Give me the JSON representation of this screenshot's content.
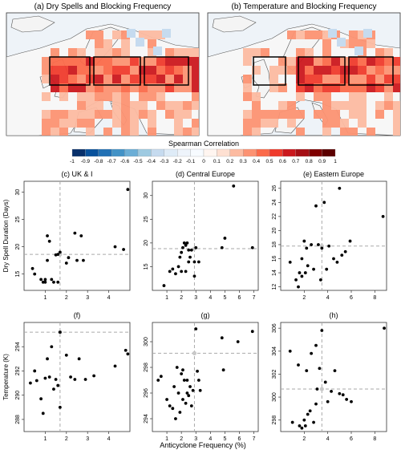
{
  "maps": [
    {
      "title": "(a) Dry Spells and Blocking Frequency"
    },
    {
      "title": "(b) Temperature and Blocking Frequency"
    }
  ],
  "colorbar": {
    "title": "Spearman Correlation",
    "ticks": [
      "-1",
      "-0.9",
      "-0.8",
      "-0.7",
      "-0.6",
      "-0.5",
      "-0.4",
      "-0.3",
      "-0.2",
      "-0.1",
      "0",
      "0.1",
      "0.2",
      "0.3",
      "0.4",
      "0.5",
      "0.6",
      "0.7",
      "0.8",
      "0.9",
      "1"
    ],
    "colors": [
      "#08306b",
      "#08519c",
      "#2171b5",
      "#4292c6",
      "#6baed6",
      "#9ecae1",
      "#c6dbef",
      "#deebf7",
      "#eef4fb",
      "#f7fbff",
      "#fff5f0",
      "#fee0d2",
      "#fcbba1",
      "#fc9272",
      "#fb6a4a",
      "#ef3b2c",
      "#cb181d",
      "#a50f15",
      "#7f0000",
      "#5c0000"
    ]
  },
  "ylabels": [
    "Dry Spell Duration (Days)",
    "Temperature (K)"
  ],
  "xlabel": "Anticyclone Frequency (%)",
  "chart_data": [
    {
      "type": "scatter",
      "title": "(c) UK & I",
      "xlim": [
        0,
        5
      ],
      "ylim": [
        12,
        32
      ],
      "xticks": [
        1,
        2,
        3,
        4
      ],
      "yticks": [
        15,
        20,
        25,
        30
      ],
      "ref_x": 1.7,
      "ref_y": 18.6,
      "x": [
        0.4,
        0.5,
        0.8,
        0.9,
        1.0,
        1.0,
        1.1,
        1.1,
        1.2,
        1.3,
        1.4,
        1.5,
        1.6,
        1.7,
        2.0,
        2.1,
        2.4,
        2.5,
        2.7,
        2.8,
        4.3,
        4.7,
        4.9,
        1.6
      ],
      "y": [
        16,
        15,
        14,
        13.5,
        13.5,
        14,
        17.5,
        22,
        21,
        14,
        13.5,
        18.5,
        13.5,
        19,
        17,
        18,
        22.5,
        17.5,
        22,
        17.5,
        20,
        19.5,
        30.5,
        18.6
      ]
    },
    {
      "type": "scatter",
      "title": "(d) Central Europe",
      "xlim": [
        0,
        7.3
      ],
      "ylim": [
        10,
        33
      ],
      "xticks": [
        1,
        2,
        3,
        4,
        5,
        6,
        7
      ],
      "yticks": [
        15,
        20,
        25,
        30
      ],
      "ref_x": 2.9,
      "ref_y": 18.8,
      "x": [
        0.8,
        1.2,
        1.4,
        1.6,
        1.8,
        1.9,
        2.0,
        2.0,
        2.1,
        2.2,
        2.3,
        2.3,
        2.4,
        2.5,
        2.5,
        2.6,
        2.7,
        2.9,
        2.9,
        3.0,
        3.2,
        4.8,
        5.0,
        5.6,
        6.9
      ],
      "y": [
        11,
        14,
        14.5,
        13.5,
        15,
        17,
        14,
        18,
        19,
        20,
        19.5,
        14,
        20,
        18.5,
        16,
        17,
        18.5,
        16,
        13,
        19,
        16,
        19,
        21,
        32,
        19
      ]
    },
    {
      "type": "scatter",
      "title": "(e) Eastern Europe",
      "xlim": [
        0,
        9
      ],
      "ylim": [
        11.5,
        27
      ],
      "xticks": [
        2,
        4,
        6,
        8
      ],
      "yticks": [
        12,
        14,
        16,
        18,
        20,
        22,
        24,
        26
      ],
      "ref_x": 3.5,
      "ref_y": 17.8,
      "x": [
        0.8,
        1.3,
        1.5,
        1.6,
        1.8,
        1.8,
        2.0,
        2.1,
        2.2,
        2.3,
        2.6,
        2.8,
        3.0,
        3.2,
        3.4,
        3.5,
        3.7,
        3.9,
        4.1,
        4.5,
        4.8,
        5.0,
        5.2,
        5.5,
        5.9,
        8.7
      ],
      "y": [
        15.5,
        13,
        12,
        14,
        16,
        13.5,
        18.5,
        14,
        17.5,
        15,
        18,
        14.5,
        23.5,
        18,
        13,
        17.5,
        24,
        14.5,
        17.8,
        16,
        15.5,
        26,
        16.5,
        17,
        18.5,
        22
      ]
    },
    {
      "type": "scatter",
      "title": "(f)",
      "xlim": [
        0,
        5
      ],
      "ylim": [
        287,
        296
      ],
      "xticks": [
        1,
        2,
        3,
        4
      ],
      "yticks": [
        288,
        290,
        292,
        294
      ],
      "ref_x": 1.7,
      "ref_y": 295.2,
      "x": [
        0.3,
        0.5,
        0.6,
        0.8,
        0.9,
        1.0,
        1.1,
        1.2,
        1.3,
        1.4,
        1.5,
        1.6,
        1.7,
        2.0,
        2.2,
        2.4,
        2.6,
        2.9,
        3.3,
        4.3,
        4.8,
        4.9,
        1.7
      ],
      "y": [
        291,
        292,
        291.2,
        289.7,
        288.5,
        291.4,
        293,
        291.5,
        294,
        290.5,
        291.3,
        290.8,
        289,
        293.3,
        291.5,
        291.3,
        293,
        291.3,
        291.6,
        292.4,
        293.7,
        293.4,
        295.2
      ]
    },
    {
      "type": "scatter",
      "title": "(g)",
      "xlim": [
        0,
        7.3
      ],
      "ylim": [
        293,
        301.5
      ],
      "xticks": [
        1,
        2,
        3,
        4,
        5,
        6,
        7
      ],
      "yticks": [
        294,
        296,
        298,
        300
      ],
      "ref_x": 2.9,
      "ref_y": 299.1,
      "x": [
        0.4,
        0.6,
        1.0,
        1.2,
        1.4,
        1.5,
        1.6,
        1.7,
        1.8,
        1.9,
        2.0,
        2.1,
        2.1,
        2.2,
        2.3,
        2.4,
        2.4,
        2.5,
        2.6,
        2.7,
        2.8,
        3.0,
        3.1,
        3.2,
        3.3,
        4.8,
        4.9,
        5.9,
        6.9
      ],
      "y": [
        297,
        297.3,
        295.5,
        295,
        294.8,
        296.5,
        294,
        298,
        296,
        294.5,
        297.5,
        297.8,
        295.5,
        297,
        295.2,
        296,
        297,
        295.8,
        296.5,
        295,
        296.2,
        301,
        297.7,
        297,
        296.2,
        300.3,
        297.8,
        300,
        300.8
      ]
    },
    {
      "type": "scatter",
      "title": "(h)",
      "xlim": [
        0,
        9
      ],
      "ylim": [
        297,
        306.5
      ],
      "xticks": [
        2,
        4,
        6,
        8
      ],
      "yticks": [
        298,
        300,
        302,
        304,
        306
      ],
      "ref_x": 3.5,
      "ref_y": 300.7,
      "x": [
        0.8,
        1.0,
        1.5,
        1.6,
        1.8,
        2.0,
        2.1,
        2.2,
        2.3,
        2.5,
        2.6,
        2.8,
        3.0,
        3.0,
        3.1,
        3.3,
        3.5,
        3.8,
        4.0,
        4.3,
        4.6,
        5.0,
        5.3,
        5.6,
        6.0,
        8.8
      ],
      "y": [
        304,
        297.8,
        302.8,
        297.5,
        297.3,
        298,
        297.5,
        302.3,
        298.5,
        298.8,
        303.8,
        297.8,
        304.5,
        299.4,
        300.7,
        302.5,
        305.8,
        301.3,
        299.6,
        300.5,
        302.3,
        300.3,
        300.2,
        299.8,
        299.6,
        306
      ]
    }
  ]
}
